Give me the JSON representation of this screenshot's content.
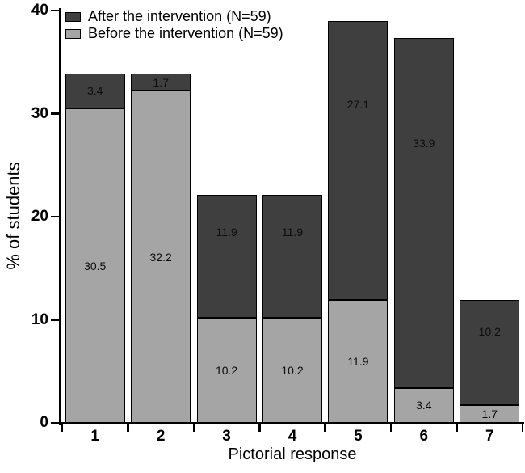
{
  "figure": {
    "background": "#ffffff"
  },
  "chart_data": {
    "type": "bar",
    "stacked": true,
    "title": "",
    "xlabel": "Pictorial response",
    "ylabel": "% of students",
    "categories": [
      "1",
      "2",
      "3",
      "4",
      "5",
      "6",
      "7"
    ],
    "series": [
      {
        "name": "Before the intervention (N=59)",
        "color": "#a5a5a5",
        "values": [
          30.5,
          32.2,
          10.2,
          10.2,
          11.9,
          3.4,
          1.7
        ]
      },
      {
        "name": "After the intervention (N=59)",
        "color": "#3f3f3f",
        "values": [
          3.4,
          1.7,
          11.9,
          11.9,
          27.1,
          33.9,
          10.2
        ]
      }
    ],
    "value_labels": true,
    "ylim": [
      0,
      40
    ],
    "yticks": [
      0,
      10,
      20,
      30,
      40
    ],
    "grid": false,
    "legend_position": "top-left"
  },
  "legend": {
    "entries": [
      {
        "label": "After the intervention (N=59)",
        "color": "#3f3f3f"
      },
      {
        "label": "Before the intervention (N=59)",
        "color": "#a5a5a5"
      }
    ]
  }
}
